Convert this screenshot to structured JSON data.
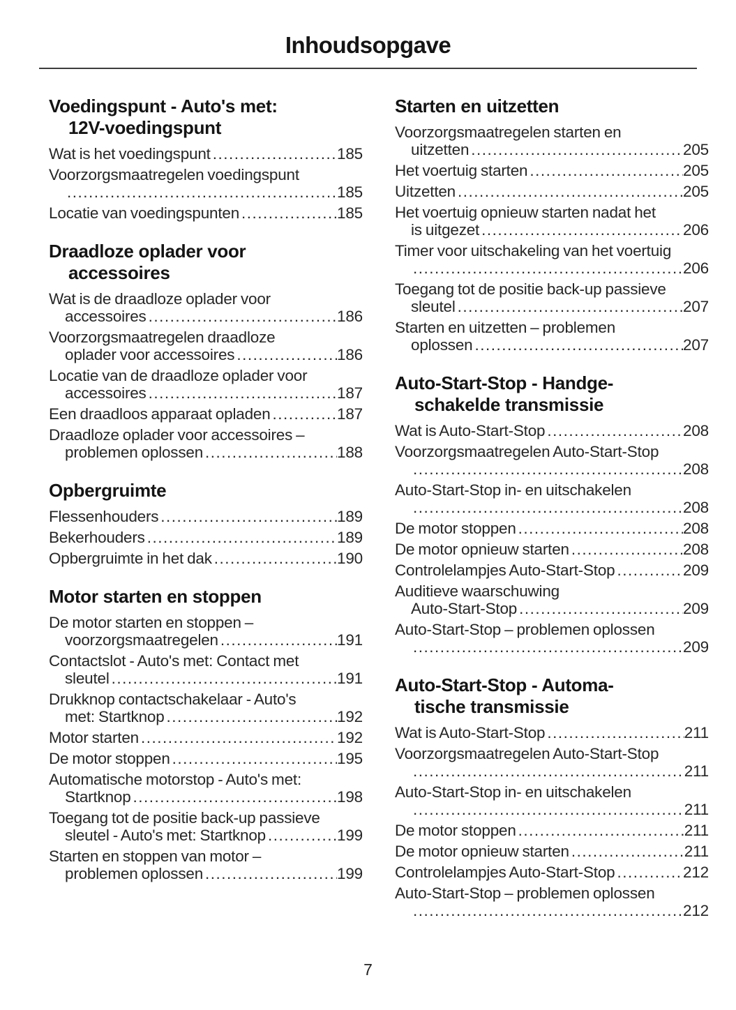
{
  "page_title": "Inhoudsopgave",
  "page_number": "7",
  "text_color": "#262626",
  "heading_color": "#141414",
  "columns": [
    {
      "side": "left",
      "sections": [
        {
          "heading_lines": [
            "Voedingspunt - Auto's met:",
            "12V-voedingspunt"
          ],
          "entries": [
            {
              "lines": [
                "Wat is het voedingspunt"
              ],
              "page": "185"
            },
            {
              "lines": [
                "Voorzorgsmaatregelen voedingspunt",
                ""
              ],
              "page": "185"
            },
            {
              "lines": [
                "Locatie van voedingspunten"
              ],
              "page": "185"
            }
          ]
        },
        {
          "heading_lines": [
            "Draadloze oplader voor",
            "accessoires"
          ],
          "entries": [
            {
              "lines": [
                "Wat is de draadloze oplader voor",
                "accessoires"
              ],
              "page": "186"
            },
            {
              "lines": [
                "Voorzorgsmaatregelen draadloze",
                "oplader voor accessoires"
              ],
              "page": "186"
            },
            {
              "lines": [
                "Locatie van de draadloze oplader voor",
                "accessoires"
              ],
              "page": "187"
            },
            {
              "lines": [
                "Een draadloos apparaat opladen"
              ],
              "page": "187"
            },
            {
              "lines": [
                "Draadloze oplader voor accessoires –",
                "problemen oplossen"
              ],
              "page": "188"
            }
          ]
        },
        {
          "heading_lines": [
            "Opbergruimte"
          ],
          "entries": [
            {
              "lines": [
                "Flessenhouders"
              ],
              "page": "189"
            },
            {
              "lines": [
                "Bekerhouders"
              ],
              "page": "189"
            },
            {
              "lines": [
                "Opbergruimte in het dak"
              ],
              "page": "190"
            }
          ]
        },
        {
          "heading_lines": [
            "Motor starten en stoppen"
          ],
          "entries": [
            {
              "lines": [
                "De motor starten en stoppen –",
                "voorzorgsmaatregelen"
              ],
              "page": "191"
            },
            {
              "lines": [
                "Contactslot - Auto's met: Contact met",
                "sleutel"
              ],
              "page": "191"
            },
            {
              "lines": [
                "Drukknop contactschakelaar - Auto's",
                "met: Startknop"
              ],
              "page": "192"
            },
            {
              "lines": [
                "Motor starten"
              ],
              "page": "192"
            },
            {
              "lines": [
                "De motor stoppen"
              ],
              "page": "195"
            },
            {
              "lines": [
                "Automatische motorstop - Auto's met:",
                "Startknop"
              ],
              "page": "198"
            },
            {
              "lines": [
                "Toegang tot de positie back-up passieve",
                "sleutel - Auto's met: Startknop"
              ],
              "page": "199"
            },
            {
              "lines": [
                "Starten en stoppen van motor –",
                "problemen oplossen"
              ],
              "page": "199"
            }
          ]
        }
      ]
    },
    {
      "side": "right",
      "sections": [
        {
          "heading_lines": [
            "Starten en uitzetten"
          ],
          "entries": [
            {
              "lines": [
                "Voorzorgsmaatregelen starten en",
                "uitzetten"
              ],
              "page": "205"
            },
            {
              "lines": [
                "Het voertuig starten"
              ],
              "page": "205"
            },
            {
              "lines": [
                "Uitzetten"
              ],
              "page": "205"
            },
            {
              "lines": [
                "Het voertuig opnieuw starten nadat het",
                "is uitgezet"
              ],
              "page": "206"
            },
            {
              "lines": [
                "Timer voor uitschakeling van het voertuig",
                ""
              ],
              "page": "206"
            },
            {
              "lines": [
                "Toegang tot de positie back-up passieve",
                "sleutel"
              ],
              "page": "207"
            },
            {
              "lines": [
                "Starten en uitzetten – problemen",
                "oplossen"
              ],
              "page": "207"
            }
          ]
        },
        {
          "heading_lines": [
            "Auto-Start-Stop - Handge-",
            "schakelde transmissie"
          ],
          "entries": [
            {
              "lines": [
                "Wat is Auto-Start-Stop"
              ],
              "page": "208"
            },
            {
              "lines": [
                "Voorzorgsmaatregelen Auto-Start-Stop",
                ""
              ],
              "page": "208"
            },
            {
              "lines": [
                "Auto-Start-Stop in- en uitschakelen",
                ""
              ],
              "page": "208"
            },
            {
              "lines": [
                "De motor stoppen"
              ],
              "page": "208"
            },
            {
              "lines": [
                "De motor opnieuw starten"
              ],
              "page": "208"
            },
            {
              "lines": [
                "Controlelampjes Auto-Start-Stop"
              ],
              "page": "209"
            },
            {
              "lines": [
                "Auditieve waarschuwing",
                "Auto-Start-Stop"
              ],
              "page": "209"
            },
            {
              "lines": [
                "Auto-Start-Stop – problemen oplossen",
                ""
              ],
              "page": "209"
            }
          ]
        },
        {
          "heading_lines": [
            "Auto-Start-Stop - Automa-",
            "tische transmissie"
          ],
          "entries": [
            {
              "lines": [
                "Wat is Auto-Start-Stop"
              ],
              "page": "211"
            },
            {
              "lines": [
                "Voorzorgsmaatregelen Auto-Start-Stop",
                ""
              ],
              "page": "211"
            },
            {
              "lines": [
                "Auto-Start-Stop in- en uitschakelen",
                ""
              ],
              "page": "211"
            },
            {
              "lines": [
                "De motor stoppen"
              ],
              "page": "211"
            },
            {
              "lines": [
                "De motor opnieuw starten"
              ],
              "page": "211"
            },
            {
              "lines": [
                "Controlelampjes Auto-Start-Stop"
              ],
              "page": "212"
            },
            {
              "lines": [
                "Auto-Start-Stop – problemen oplossen",
                ""
              ],
              "page": "212"
            }
          ]
        }
      ]
    }
  ]
}
